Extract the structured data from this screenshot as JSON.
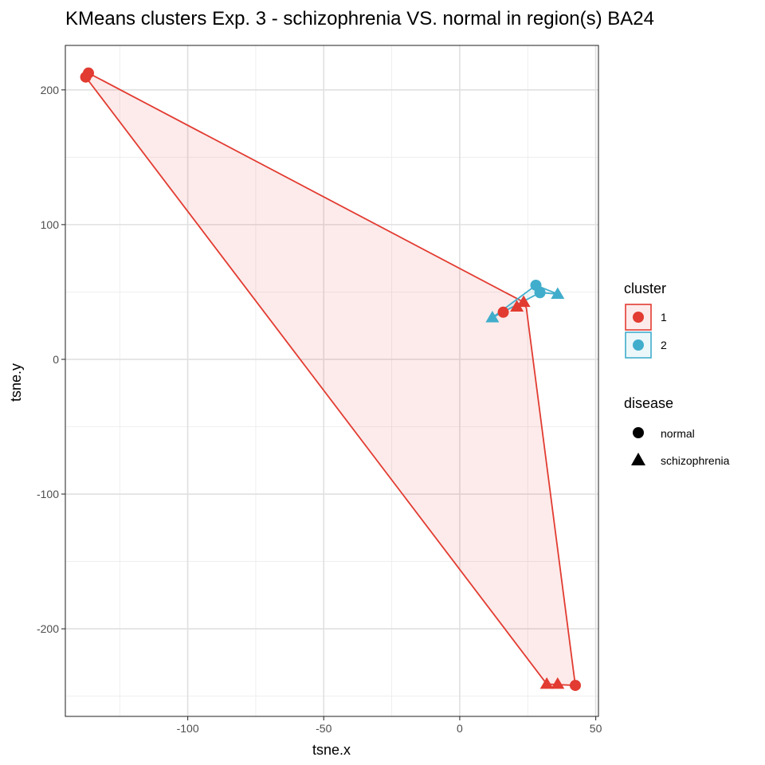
{
  "chart_data": {
    "type": "scatter",
    "title": "KMeans clusters Exp. 3 - schizophrenia VS. normal in region(s) BA24",
    "xlabel": "tsne.x",
    "ylabel": "tsne.y",
    "xlim": [
      -145,
      51
    ],
    "ylim": [
      -265,
      233
    ],
    "x_ticks": [
      -100,
      -50,
      0,
      50
    ],
    "y_ticks": [
      -200,
      -100,
      0,
      100,
      200
    ],
    "x_tick_labels": [
      "-100",
      "-50",
      "0",
      "50"
    ],
    "y_tick_labels": [
      "-200",
      "-100",
      "0",
      "100",
      "200"
    ],
    "grid": true,
    "legend_position": "right",
    "colors": {
      "cluster1": "#e23b31",
      "cluster2": "#41adcc"
    },
    "legend": {
      "cluster": {
        "title": "cluster",
        "items": [
          {
            "label": "1",
            "color": "#e23b31"
          },
          {
            "label": "2",
            "color": "#41adcc"
          }
        ]
      },
      "disease": {
        "title": "disease",
        "items": [
          {
            "label": "normal",
            "shape": "circle"
          },
          {
            "label": "schizophrenia",
            "shape": "triangle"
          }
        ]
      }
    },
    "series": [
      {
        "cluster": "1",
        "color": "#e23b31",
        "points": [
          {
            "x": -136.5,
            "y": 212.5,
            "shape": "circle"
          },
          {
            "x": -137.5,
            "y": 209.5,
            "shape": "circle"
          },
          {
            "x": 16,
            "y": 35,
            "shape": "circle"
          },
          {
            "x": 21,
            "y": 39,
            "shape": "triangle"
          },
          {
            "x": 23.5,
            "y": 42.5,
            "shape": "triangle"
          },
          {
            "x": 42.5,
            "y": -242,
            "shape": "circle"
          },
          {
            "x": 32,
            "y": -241,
            "shape": "triangle"
          },
          {
            "x": 36,
            "y": -241,
            "shape": "triangle"
          }
        ],
        "hull": [
          [
            -136.5,
            212.5
          ],
          [
            23.5,
            42.5
          ],
          [
            24.5,
            38
          ],
          [
            42.5,
            -242
          ],
          [
            32,
            -241
          ],
          [
            -137.5,
            209.5
          ]
        ]
      },
      {
        "cluster": "2",
        "color": "#41adcc",
        "points": [
          {
            "x": 28,
            "y": 55,
            "shape": "circle"
          },
          {
            "x": 29.5,
            "y": 49.5,
            "shape": "circle"
          },
          {
            "x": 12,
            "y": 31,
            "shape": "triangle"
          },
          {
            "x": 36,
            "y": 48.5,
            "shape": "triangle"
          }
        ],
        "hull": [
          [
            28,
            55
          ],
          [
            36,
            48.5
          ],
          [
            29.5,
            49.5
          ],
          [
            12,
            31
          ]
        ]
      }
    ]
  }
}
